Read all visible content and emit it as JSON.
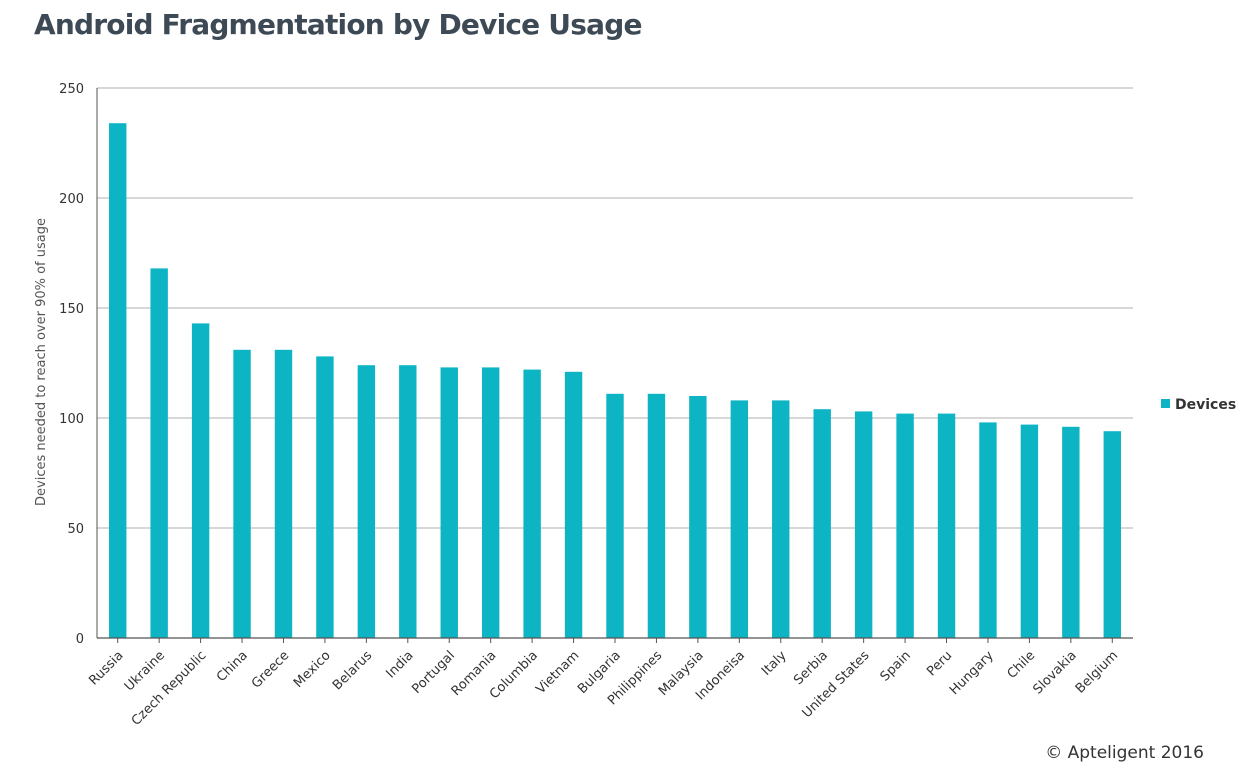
{
  "copyright": "© Apteligent 2016",
  "colors": {
    "bar": "#0cb4c4",
    "title": "#3d4a55",
    "grid": "#bfbfbf",
    "axis": "#555555",
    "text": "#333333"
  },
  "chart_data": {
    "type": "bar",
    "title": "Android Fragmentation by Device Usage",
    "xlabel": "",
    "ylabel": "Devices needed to reach over 90% of usage",
    "ylim": [
      0,
      250
    ],
    "yticks": [
      0,
      50,
      100,
      150,
      200,
      250
    ],
    "grid": true,
    "legend_position": "right",
    "categories": [
      "Russia",
      "Ukraine",
      "Czech Republic",
      "China",
      "Greece",
      "Mexico",
      "Belarus",
      "India",
      "Portugal",
      "Romania",
      "Columbia",
      "Vietnam",
      "Bulgaria",
      "Philippines",
      "Malaysia",
      "Indoneisa",
      "Italy",
      "Serbia",
      "United States",
      "Spain",
      "Peru",
      "Hungary",
      "Chile",
      "Slovakia",
      "Belgium"
    ],
    "series": [
      {
        "name": "Devices",
        "values": [
          234,
          168,
          143,
          131,
          131,
          128,
          124,
          124,
          123,
          123,
          122,
          121,
          111,
          111,
          110,
          108,
          108,
          104,
          103,
          102,
          102,
          98,
          97,
          96,
          94
        ]
      }
    ]
  }
}
